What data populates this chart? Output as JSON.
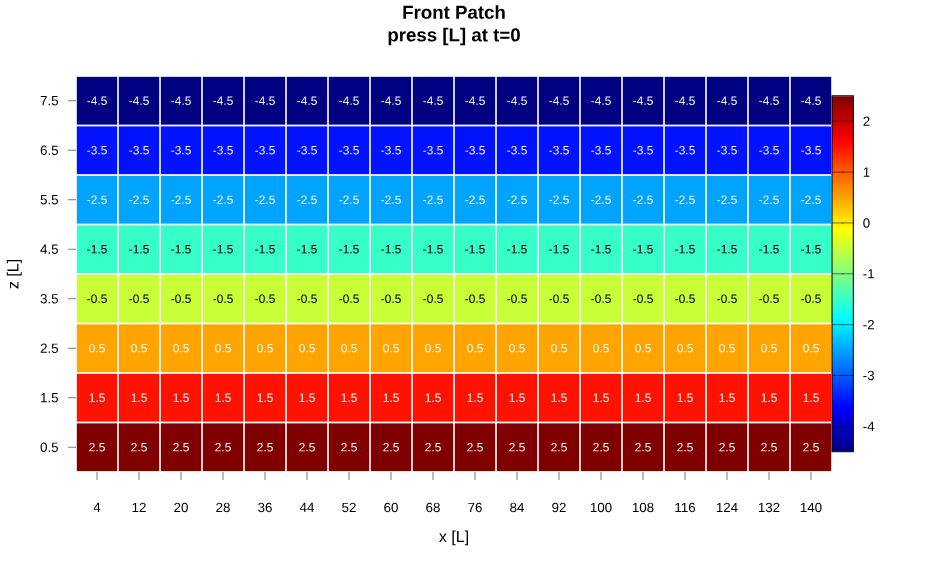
{
  "chart_data": {
    "type": "heatmap",
    "title": "Front Patch",
    "subtitle": "press [L] at t=0",
    "xlabel": "x [L]",
    "ylabel": "z [L]",
    "categories": [
      "4",
      "12",
      "20",
      "28",
      "36",
      "44",
      "52",
      "60",
      "68",
      "76",
      "84",
      "92",
      "100",
      "108",
      "116",
      "124",
      "132",
      "140"
    ],
    "y_categories": [
      "7.5",
      "6.5",
      "5.5",
      "4.5",
      "3.5",
      "2.5",
      "1.5",
      "0.5"
    ],
    "cells": [
      [
        -4.5,
        -4.5,
        -4.5,
        -4.5,
        -4.5,
        -4.5,
        -4.5,
        -4.5,
        -4.5,
        -4.5,
        -4.5,
        -4.5,
        -4.5,
        -4.5,
        -4.5,
        -4.5,
        -4.5,
        -4.5
      ],
      [
        -3.5,
        -3.5,
        -3.5,
        -3.5,
        -3.5,
        -3.5,
        -3.5,
        -3.5,
        -3.5,
        -3.5,
        -3.5,
        -3.5,
        -3.5,
        -3.5,
        -3.5,
        -3.5,
        -3.5,
        -3.5
      ],
      [
        -2.5,
        -2.5,
        -2.5,
        -2.5,
        -2.5,
        -2.5,
        -2.5,
        -2.5,
        -2.5,
        -2.5,
        -2.5,
        -2.5,
        -2.5,
        -2.5,
        -2.5,
        -2.5,
        -2.5,
        -2.5
      ],
      [
        -1.5,
        -1.5,
        -1.5,
        -1.5,
        -1.5,
        -1.5,
        -1.5,
        -1.5,
        -1.5,
        -1.5,
        -1.5,
        -1.5,
        -1.5,
        -1.5,
        -1.5,
        -1.5,
        -1.5,
        -1.5
      ],
      [
        -0.5,
        -0.5,
        -0.5,
        -0.5,
        -0.5,
        -0.5,
        -0.5,
        -0.5,
        -0.5,
        -0.5,
        -0.5,
        -0.5,
        -0.5,
        -0.5,
        -0.5,
        -0.5,
        -0.5,
        -0.5
      ],
      [
        0.5,
        0.5,
        0.5,
        0.5,
        0.5,
        0.5,
        0.5,
        0.5,
        0.5,
        0.5,
        0.5,
        0.5,
        0.5,
        0.5,
        0.5,
        0.5,
        0.5,
        0.5
      ],
      [
        1.5,
        1.5,
        1.5,
        1.5,
        1.5,
        1.5,
        1.5,
        1.5,
        1.5,
        1.5,
        1.5,
        1.5,
        1.5,
        1.5,
        1.5,
        1.5,
        1.5,
        1.5
      ],
      [
        2.5,
        2.5,
        2.5,
        2.5,
        2.5,
        2.5,
        2.5,
        2.5,
        2.5,
        2.5,
        2.5,
        2.5,
        2.5,
        2.5,
        2.5,
        2.5,
        2.5,
        2.5
      ]
    ],
    "clim": [
      -4.5,
      2.5
    ],
    "cticks": [
      -4,
      -3,
      -2,
      -1,
      0,
      1,
      2
    ],
    "data_labels": true
  }
}
